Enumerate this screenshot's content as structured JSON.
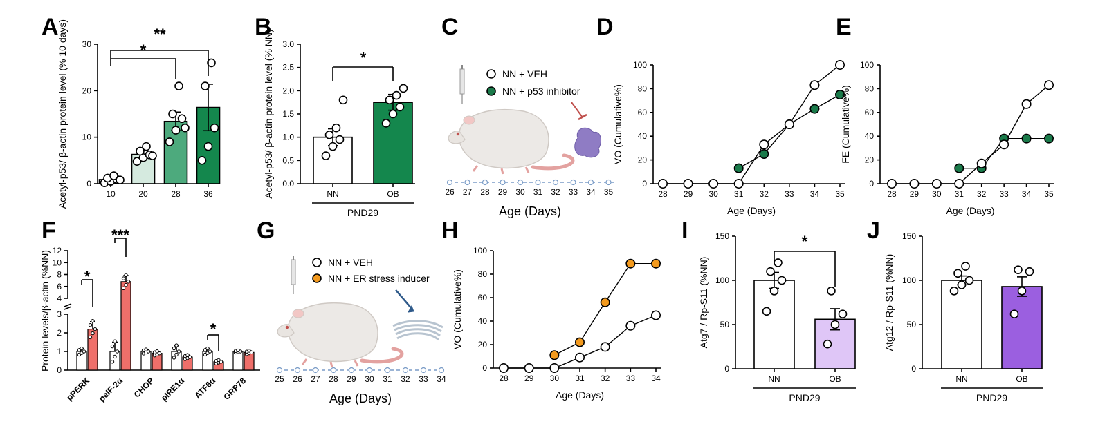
{
  "figure": {
    "panel_letters": [
      "A",
      "B",
      "C",
      "D",
      "E",
      "F",
      "G",
      "H",
      "I",
      "J"
    ]
  },
  "colors": {
    "green_light": "#d5eadf",
    "green_mid": "#4daa7d",
    "green_dark": "#14874d",
    "green_marker": "#1a7a4a",
    "salmon": "#ef6f6a",
    "orange": "#f39a1e",
    "lavender": "#dfc6f7",
    "purple": "#9b5fe0",
    "line_blue": "#7a9cc7"
  },
  "chart_data": [
    {
      "panel": "A",
      "type": "bar",
      "ylabel": "Acetyl-p53/ β-actin protein level (% 10 days)",
      "categories": [
        "10",
        "20",
        "28",
        "36"
      ],
      "values": [
        0.9,
        6.3,
        13.4,
        16.4
      ],
      "errors": [
        0.3,
        0.8,
        2.0,
        5.0
      ],
      "points": [
        [
          0.2,
          0.5,
          0.9,
          1.2,
          1.7,
          0.8
        ],
        [
          4.8,
          5.6,
          6.2,
          7.0,
          8.0,
          6.0
        ],
        [
          9.0,
          11.5,
          14.0,
          15.0,
          21.0,
          12.0
        ],
        [
          5.0,
          8.0,
          12.0,
          21.0,
          26.0
        ]
      ],
      "ylim": [
        0,
        30
      ],
      "yticks": [
        0,
        10,
        20,
        30
      ],
      "significance": [
        {
          "from": "10",
          "to": "28",
          "label": "*"
        },
        {
          "from": "10",
          "to": "36",
          "label": "**"
        }
      ]
    },
    {
      "panel": "B",
      "type": "bar",
      "ylabel": "Acetyl-p53/ β-actin protein level (% NN)",
      "categories": [
        "NN",
        "OB"
      ],
      "values": [
        1.0,
        1.75
      ],
      "errors": [
        0.18,
        0.17
      ],
      "points": [
        [
          0.6,
          0.8,
          0.95,
          1.05,
          1.2,
          1.8
        ],
        [
          1.3,
          1.5,
          1.65,
          1.8,
          1.9,
          2.05
        ]
      ],
      "ylim": [
        0,
        3.0
      ],
      "yticks": [
        "0.0",
        "0.5",
        "1.0",
        "1.5",
        "2.0",
        "2.5",
        "3.0"
      ],
      "group_label": "PND29",
      "significance": [
        {
          "from": "NN",
          "to": "OB",
          "label": "*"
        }
      ]
    },
    {
      "panel": "C",
      "type": "timeline",
      "legend": [
        "NN + VEH",
        "NN + p53 inhibitor"
      ],
      "ticks": [
        "26",
        "27",
        "28",
        "29",
        "30",
        "31",
        "32",
        "33",
        "34",
        "35"
      ],
      "xlabel": "Age (Days)"
    },
    {
      "panel": "D",
      "type": "line",
      "ylabel": "VO (Cumulative%)",
      "xlabel": "Age (Days)",
      "x": [
        28,
        29,
        30,
        31,
        32,
        33,
        34,
        35
      ],
      "ylim": [
        0,
        100
      ],
      "yticks": [
        0,
        20,
        40,
        60,
        80,
        100
      ],
      "series": [
        {
          "marker": "white",
          "points": [
            [
              28,
              0
            ],
            [
              29,
              0
            ],
            [
              30,
              0
            ],
            [
              31,
              0
            ],
            [
              32,
              33
            ],
            [
              33,
              50
            ],
            [
              34,
              83
            ],
            [
              35,
              100
            ]
          ]
        },
        {
          "marker": "green",
          "points": [
            [
              31,
              13
            ],
            [
              32,
              25
            ],
            [
              33,
              50
            ],
            [
              34,
              63
            ],
            [
              35,
              75
            ]
          ]
        }
      ]
    },
    {
      "panel": "E",
      "type": "line",
      "ylabel": "FE (Cumulative%)",
      "xlabel": "Age (Days)",
      "x": [
        28,
        29,
        30,
        31,
        32,
        33,
        34,
        35
      ],
      "ylim": [
        0,
        100
      ],
      "yticks": [
        0,
        20,
        40,
        60,
        80,
        100
      ],
      "series": [
        {
          "marker": "white",
          "points": [
            [
              28,
              0
            ],
            [
              29,
              0
            ],
            [
              30,
              0
            ],
            [
              31,
              0
            ],
            [
              32,
              17
            ],
            [
              33,
              33
            ],
            [
              34,
              67
            ],
            [
              35,
              83
            ]
          ]
        },
        {
          "marker": "green",
          "points": [
            [
              31,
              13
            ],
            [
              32,
              13
            ],
            [
              33,
              38
            ],
            [
              34,
              38
            ],
            [
              35,
              38
            ]
          ]
        }
      ]
    },
    {
      "panel": "F",
      "type": "bar",
      "ylabel": "Protein levels/β-actin (%NN)",
      "categories": [
        "pPERK",
        "peIF-2α",
        "CHOP",
        "pIRE1α",
        "ATF6α",
        "GRP78"
      ],
      "series": [
        {
          "marker": "white",
          "values": [
            1.0,
            1.0,
            1.0,
            1.0,
            1.0,
            1.0
          ],
          "errors": [
            0.15,
            0.5,
            0.1,
            0.3,
            0.15,
            0.05
          ]
        },
        {
          "marker": "salmon",
          "values": [
            2.2,
            6.8,
            0.9,
            0.7,
            0.45,
            0.95
          ],
          "errors": [
            0.4,
            1.0,
            0.1,
            0.1,
            0.08,
            0.08
          ]
        }
      ],
      "yticks_lower": [
        "0",
        "1",
        "2",
        "3"
      ],
      "yticks_upper": [
        "4",
        "6",
        "8",
        "10",
        "12"
      ],
      "significance": [
        {
          "category": "pPERK",
          "label": "*"
        },
        {
          "category": "peIF-2α",
          "label": "***"
        },
        {
          "category": "ATF6α",
          "label": "*"
        }
      ]
    },
    {
      "panel": "G",
      "type": "timeline",
      "legend": [
        "NN + VEH",
        "NN + ER stress inducer"
      ],
      "ticks": [
        "25",
        "26",
        "27",
        "28",
        "29",
        "30",
        "31",
        "32",
        "33",
        "34"
      ],
      "xlabel": "Age (Days)"
    },
    {
      "panel": "H",
      "type": "line",
      "ylabel": "VO (Cumulative%)",
      "xlabel": "Age (Days)",
      "x": [
        28,
        29,
        30,
        31,
        32,
        33,
        34
      ],
      "ylim": [
        0,
        100
      ],
      "yticks": [
        0,
        20,
        40,
        60,
        80,
        100
      ],
      "series": [
        {
          "marker": "white",
          "points": [
            [
              28,
              0
            ],
            [
              29,
              0
            ],
            [
              30,
              0
            ],
            [
              31,
              9
            ],
            [
              32,
              18
            ],
            [
              33,
              36
            ],
            [
              34,
              45
            ]
          ]
        },
        {
          "marker": "orange",
          "points": [
            [
              30,
              11
            ],
            [
              31,
              22
            ],
            [
              32,
              56
            ],
            [
              33,
              89
            ],
            [
              34,
              89
            ]
          ]
        }
      ]
    },
    {
      "panel": "I",
      "type": "bar",
      "ylabel": "Atg7 / Rp-S11 (%NN)",
      "categories": [
        "NN",
        "OB"
      ],
      "values": [
        100,
        56
      ],
      "errors": [
        9,
        12
      ],
      "points": [
        [
          65,
          88,
          100,
          110,
          120
        ],
        [
          28,
          50,
          62,
          88
        ]
      ],
      "ylim": [
        0,
        150
      ],
      "yticks": [
        0,
        50,
        100,
        150
      ],
      "group_label": "PND29",
      "significance": [
        {
          "from": "NN",
          "to": "OB",
          "label": "*"
        }
      ]
    },
    {
      "panel": "J",
      "type": "bar",
      "ylabel": "Atg12 / Rp-S11 (%NN)",
      "categories": [
        "NN",
        "OB"
      ],
      "values": [
        100,
        93
      ],
      "errors": [
        5,
        11
      ],
      "points": [
        [
          88,
          95,
          100,
          108,
          116
        ],
        [
          62,
          88,
          110,
          112
        ]
      ],
      "ylim": [
        0,
        150
      ],
      "yticks": [
        0,
        50,
        100,
        150
      ],
      "group_label": "PND29"
    }
  ]
}
